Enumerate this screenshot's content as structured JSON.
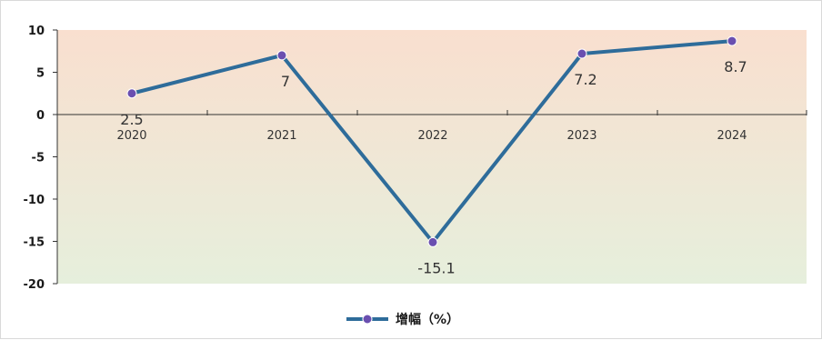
{
  "chart_data": {
    "type": "line",
    "x": [
      "2020",
      "2021",
      "2022",
      "2023",
      "2024"
    ],
    "series": [
      {
        "name": "增幅（%）",
        "values": [
          2.5,
          7,
          -15.1,
          7.2,
          8.7
        ],
        "labels": [
          "2.5",
          "7",
          "-15.1",
          "7.2",
          "8.7"
        ]
      }
    ],
    "ylim": [
      -20,
      10
    ],
    "yticks": [
      "10",
      "5",
      "0",
      "-5",
      "-10",
      "-15",
      "-20"
    ],
    "legend": "bottom-center",
    "grid": false,
    "colors": {
      "line": "#2e6c9a",
      "marker": "#6a4fb0",
      "plot_top": "#f9dfcf",
      "plot_bottom": "#e6efdc",
      "axis": "#333333"
    }
  }
}
